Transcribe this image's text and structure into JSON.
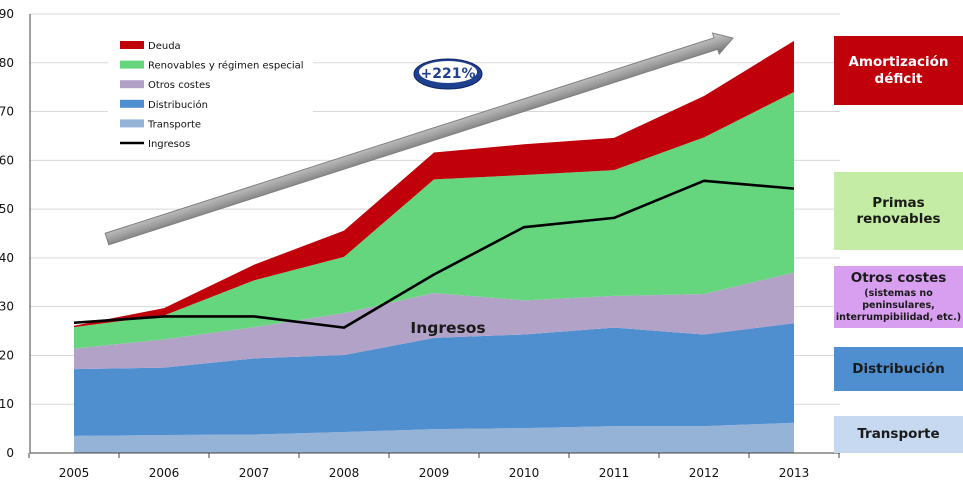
{
  "chart_data": {
    "type": "area",
    "categories": [
      "2005",
      "2006",
      "2007",
      "2008",
      "2009",
      "2010",
      "2011",
      "2012",
      "2013"
    ],
    "ylim": [
      0,
      90
    ],
    "yticks": [
      0,
      10,
      20,
      30,
      40,
      50,
      60,
      70,
      80,
      90
    ],
    "stacked": true,
    "series": [
      {
        "name": "Transporte",
        "color": "#95b3d7",
        "values": [
          3.5,
          3.7,
          3.8,
          4.3,
          4.9,
          5.1,
          5.5,
          5.5,
          6.2
        ]
      },
      {
        "name": "Distribución",
        "color": "#4f8fd0",
        "values": [
          13.7,
          13.8,
          15.6,
          15.8,
          18.7,
          19.2,
          20.2,
          18.8,
          20.4
        ]
      },
      {
        "name": "Otros costes",
        "color": "#b3a2c7",
        "values": [
          4.2,
          5.8,
          6.4,
          8.6,
          9.2,
          7.0,
          6.5,
          8.3,
          10.4
        ]
      },
      {
        "name": "Renovables y régimen especial",
        "color": "#66d67e",
        "values": [
          4.4,
          4.9,
          9.6,
          11.5,
          23.3,
          25.7,
          25.8,
          32.1,
          37.0
        ]
      },
      {
        "name": "Deuda",
        "color": "#c0000b",
        "values": [
          0.3,
          1.5,
          3.2,
          5.4,
          5.5,
          6.3,
          6.6,
          8.5,
          10.5
        ]
      }
    ],
    "line_series": {
      "name": "Ingresos",
      "color": "#000000",
      "values": [
        26.7,
        28.0,
        28.0,
        25.7,
        36.6,
        46.3,
        48.2,
        55.8,
        54.2
      ]
    },
    "legend": {
      "position": "top-left",
      "items": [
        "Deuda",
        "Renovables y régimen especial",
        "Otros costes",
        "Distribución",
        "Transporte",
        "Ingresos"
      ]
    },
    "annotations": {
      "growth_label": "+221%",
      "line_label": "Ingresos"
    },
    "grid": "horizontal"
  },
  "side_panel": [
    {
      "key": "amortizacion",
      "title": "Amortización déficit",
      "note": "",
      "bg": "#c0000b",
      "fg": "#ffffff"
    },
    {
      "key": "primas",
      "title": "Primas renovables",
      "note": "",
      "bg": "#c4eca4",
      "fg": "#1a1a1a"
    },
    {
      "key": "otros",
      "title": "Otros costes",
      "note": "(sistemas no peninsulares, interrumpibilidad, etc.)",
      "bg": "#d89ef0",
      "fg": "#1a1a1a"
    },
    {
      "key": "distribucion",
      "title": "Distribución",
      "note": "",
      "bg": "#4f8fd0",
      "fg": "#1a1a1a"
    },
    {
      "key": "transporte",
      "title": "Transporte",
      "note": "",
      "bg": "#c6d9f1",
      "fg": "#1a1a1a"
    }
  ]
}
